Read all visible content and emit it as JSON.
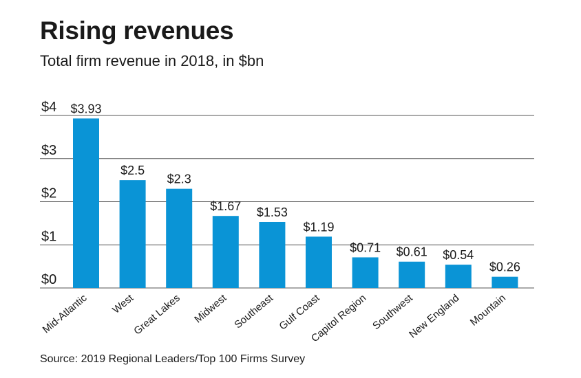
{
  "chart_data": {
    "type": "bar",
    "title": "Rising revenues",
    "subtitle": "Total firm revenue in 2018, in $bn",
    "source": "Source: 2019 Regional Leaders/Top 100 Firms Survey",
    "categories": [
      "Mid-Atlantic",
      "West",
      "Great Lakes",
      "Midwest",
      "Southeast",
      "Gulf Coast",
      "Capitol Region",
      "Southwest",
      "New England",
      "Mountain"
    ],
    "values": [
      3.93,
      2.5,
      2.3,
      1.67,
      1.53,
      1.19,
      0.71,
      0.61,
      0.54,
      0.26
    ],
    "value_labels": [
      "$3.93",
      "$2.5",
      "$2.3",
      "$1.67",
      "$1.53",
      "$1.19",
      "$0.71",
      "$0.61",
      "$0.54",
      "$0.26"
    ],
    "y_ticks": [
      0,
      1,
      2,
      3,
      4
    ],
    "y_tick_labels": [
      "$0",
      "$1",
      "$2",
      "$3",
      "$4"
    ],
    "ylim": [
      0,
      4
    ],
    "xlabel": "",
    "ylabel": "",
    "grid": true,
    "bar_color": "#0a94d6",
    "grid_color": "#555555"
  }
}
